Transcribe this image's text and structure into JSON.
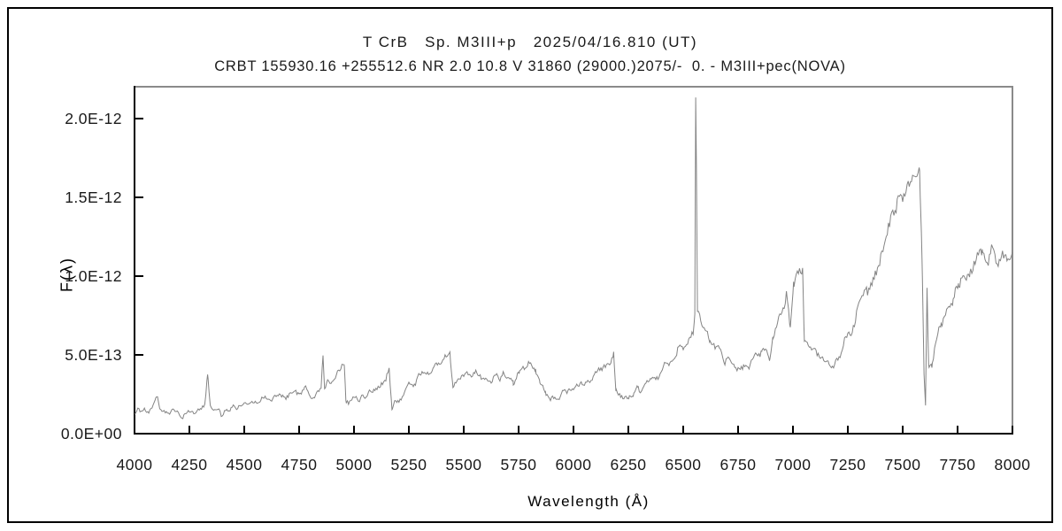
{
  "chart_data": {
    "type": "line",
    "title": "T CrB   Sp. M3III+p   2025/04/16.810 (UT)",
    "subtitle": "CRBT 155930.16 +255512.6 NR 2.0 10.8 V 31860 (29000.)2075/-  0. - M3III+pec(NOVA)",
    "xlabel": "Wavelength (Å)",
    "ylabel": "F(λ)",
    "grid": false,
    "legend": "none",
    "xlim": [
      4000,
      8000
    ],
    "ylim": [
      0,
      2.2e-12
    ],
    "x_ticks": [
      4000,
      4250,
      4500,
      4750,
      5000,
      5250,
      5500,
      5750,
      6000,
      6250,
      6500,
      6750,
      7000,
      7250,
      7500,
      7750,
      8000
    ],
    "y_ticks": [
      {
        "value_e13": 0,
        "label": "0.0E+00"
      },
      {
        "value_e13": 5,
        "label": "5.0E-13"
      },
      {
        "value_e13": 10,
        "label": "1.0E-12"
      },
      {
        "value_e13": 15,
        "label": "1.5E-12"
      },
      {
        "value_e13": 20,
        "label": "2.0E-12"
      }
    ],
    "line_color": "#848484",
    "axis_color": "#000000",
    "box_color": "#8a8a8a",
    "flux_unit_scale": "1e-13",
    "noise": {
      "coarse_amp_base": 0.12,
      "coarse_amp_slope": 0.045,
      "fine_amp_base": 0.07,
      "fine_amp_slope": 0.02,
      "coarse_step_angstrom": 16,
      "sample_step_angstrom": 5
    },
    "series": [
      {
        "name": "T CrB spectrum",
        "x_unit": "Angstrom",
        "points_e13": [
          [
            4000,
            1.3
          ],
          [
            4015,
            1.5
          ],
          [
            4030,
            1.3
          ],
          [
            4045,
            1.6
          ],
          [
            4060,
            1.4
          ],
          [
            4080,
            1.5
          ],
          [
            4096,
            2.1
          ],
          [
            4105,
            2.4
          ],
          [
            4115,
            1.5
          ],
          [
            4140,
            1.4
          ],
          [
            4170,
            1.5
          ],
          [
            4200,
            1.3
          ],
          [
            4220,
            0.9
          ],
          [
            4240,
            1.4
          ],
          [
            4260,
            1.5
          ],
          [
            4280,
            1.3
          ],
          [
            4300,
            1.5
          ],
          [
            4320,
            1.7
          ],
          [
            4333,
            3.5
          ],
          [
            4345,
            1.8
          ],
          [
            4365,
            1.6
          ],
          [
            4395,
            1.2
          ],
          [
            4420,
            1.5
          ],
          [
            4450,
            1.7
          ],
          [
            4480,
            1.8
          ],
          [
            4510,
            1.9
          ],
          [
            4540,
            2.0
          ],
          [
            4570,
            2.1
          ],
          [
            4600,
            2.2
          ],
          [
            4630,
            2.2
          ],
          [
            4660,
            2.3
          ],
          [
            4690,
            2.4
          ],
          [
            4720,
            2.5
          ],
          [
            4750,
            2.6
          ],
          [
            4780,
            2.8
          ],
          [
            4805,
            2.1
          ],
          [
            4830,
            2.6
          ],
          [
            4850,
            3.0
          ],
          [
            4859,
            5.1
          ],
          [
            4866,
            3.0
          ],
          [
            4885,
            3.2
          ],
          [
            4905,
            3.5
          ],
          [
            4925,
            3.9
          ],
          [
            4945,
            4.2
          ],
          [
            4956,
            4.3
          ],
          [
            4963,
            2.1
          ],
          [
            4980,
            2.0
          ],
          [
            5005,
            2.1
          ],
          [
            5030,
            2.3
          ],
          [
            5060,
            2.5
          ],
          [
            5090,
            2.7
          ],
          [
            5120,
            3.0
          ],
          [
            5145,
            3.4
          ],
          [
            5160,
            4.3
          ],
          [
            5173,
            1.7
          ],
          [
            5190,
            2.0
          ],
          [
            5215,
            2.3
          ],
          [
            5245,
            2.9
          ],
          [
            5275,
            3.3
          ],
          [
            5300,
            3.8
          ],
          [
            5320,
            4.0
          ],
          [
            5340,
            3.6
          ],
          [
            5365,
            4.2
          ],
          [
            5395,
            4.6
          ],
          [
            5420,
            4.9
          ],
          [
            5437,
            5.2
          ],
          [
            5451,
            3.0
          ],
          [
            5475,
            3.4
          ],
          [
            5500,
            3.6
          ],
          [
            5525,
            3.7
          ],
          [
            5550,
            3.8
          ],
          [
            5575,
            3.7
          ],
          [
            5600,
            3.4
          ],
          [
            5625,
            3.5
          ],
          [
            5650,
            3.6
          ],
          [
            5675,
            3.6
          ],
          [
            5700,
            3.5
          ],
          [
            5726,
            3.4
          ],
          [
            5752,
            3.7
          ],
          [
            5776,
            4.1
          ],
          [
            5800,
            4.5
          ],
          [
            5827,
            3.9
          ],
          [
            5847,
            3.0
          ],
          [
            5872,
            2.8
          ],
          [
            5895,
            2.0
          ],
          [
            5920,
            2.3
          ],
          [
            5945,
            2.5
          ],
          [
            5970,
            2.6
          ],
          [
            6000,
            2.8
          ],
          [
            6030,
            3.1
          ],
          [
            6060,
            3.4
          ],
          [
            6090,
            3.7
          ],
          [
            6120,
            4.0
          ],
          [
            6150,
            4.5
          ],
          [
            6170,
            4.9
          ],
          [
            6183,
            5.3
          ],
          [
            6193,
            2.7
          ],
          [
            6212,
            2.4
          ],
          [
            6232,
            2.3
          ],
          [
            6252,
            2.5
          ],
          [
            6272,
            2.6
          ],
          [
            6292,
            2.8
          ],
          [
            6312,
            3.0
          ],
          [
            6340,
            3.3
          ],
          [
            6370,
            3.6
          ],
          [
            6400,
            3.9
          ],
          [
            6430,
            4.4
          ],
          [
            6460,
            4.9
          ],
          [
            6490,
            5.4
          ],
          [
            6520,
            5.9
          ],
          [
            6545,
            6.8
          ],
          [
            6553,
            7.6
          ],
          [
            6557,
            21.4
          ],
          [
            6561,
            15.6
          ],
          [
            6565,
            8.0
          ],
          [
            6580,
            7.2
          ],
          [
            6600,
            6.6
          ],
          [
            6622,
            6.0
          ],
          [
            6645,
            5.4
          ],
          [
            6670,
            5.0
          ],
          [
            6695,
            4.6
          ],
          [
            6720,
            4.4
          ],
          [
            6745,
            4.3
          ],
          [
            6772,
            4.2
          ],
          [
            6800,
            4.4
          ],
          [
            6830,
            4.8
          ],
          [
            6858,
            5.3
          ],
          [
            6880,
            5.6
          ],
          [
            6893,
            4.7
          ],
          [
            6908,
            6.2
          ],
          [
            6930,
            7.0
          ],
          [
            6950,
            7.8
          ],
          [
            6970,
            8.8
          ],
          [
            6988,
            6.6
          ],
          [
            7003,
            9.4
          ],
          [
            7020,
            10.0
          ],
          [
            7044,
            10.8
          ],
          [
            7052,
            5.7
          ],
          [
            7070,
            5.4
          ],
          [
            7100,
            5.0
          ],
          [
            7130,
            4.6
          ],
          [
            7160,
            4.4
          ],
          [
            7185,
            4.3
          ],
          [
            7210,
            4.8
          ],
          [
            7240,
            5.8
          ],
          [
            7270,
            6.8
          ],
          [
            7300,
            7.9
          ],
          [
            7330,
            8.9
          ],
          [
            7360,
            10.0
          ],
          [
            7390,
            11.2
          ],
          [
            7420,
            12.4
          ],
          [
            7450,
            13.8
          ],
          [
            7480,
            14.8
          ],
          [
            7505,
            15.3
          ],
          [
            7530,
            15.6
          ],
          [
            7555,
            15.9
          ],
          [
            7577,
            16.3
          ],
          [
            7588,
            10.9
          ],
          [
            7597,
            3.8
          ],
          [
            7604,
            1.8
          ],
          [
            7611,
            9.3
          ],
          [
            7618,
            4.4
          ],
          [
            7633,
            4.3
          ],
          [
            7650,
            5.7
          ],
          [
            7673,
            6.9
          ],
          [
            7700,
            7.7
          ],
          [
            7727,
            8.6
          ],
          [
            7754,
            9.2
          ],
          [
            7780,
            9.9
          ],
          [
            7807,
            10.4
          ],
          [
            7835,
            10.8
          ],
          [
            7862,
            11.1
          ],
          [
            7890,
            11.1
          ],
          [
            7915,
            11.3
          ],
          [
            7940,
            11.0
          ],
          [
            7965,
            11.5
          ],
          [
            7985,
            11.3
          ],
          [
            8000,
            11.8
          ]
        ]
      }
    ]
  }
}
